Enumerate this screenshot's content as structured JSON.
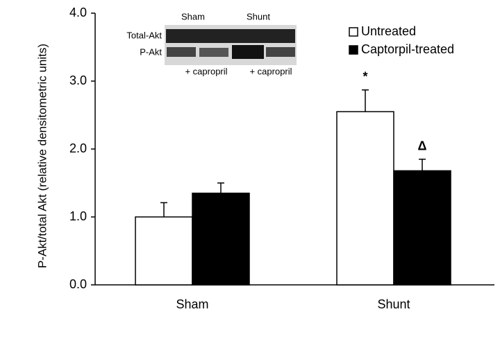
{
  "chart_data": {
    "type": "bar",
    "ylabel": "P-Akt/total Akt (relative densitometric units)",
    "categories": [
      "Sham",
      "Shunt"
    ],
    "series": [
      {
        "name": "Untreated",
        "color": "#ffffff",
        "values": [
          1.0,
          2.55
        ],
        "errors": [
          0.21,
          0.32
        ]
      },
      {
        "name": "Captorpil-treated",
        "color": "#000000",
        "values": [
          1.35,
          1.68
        ],
        "errors": [
          0.15,
          0.17
        ]
      }
    ],
    "annotations": [
      "*",
      "Δ"
    ],
    "ylim": [
      0,
      4
    ],
    "yticks": [
      {
        "value": 0,
        "label": "0.0"
      },
      {
        "value": 1,
        "label": "1.0"
      },
      {
        "value": 2,
        "label": "2.0"
      },
      {
        "value": 3,
        "label": "3.0"
      },
      {
        "value": 4,
        "label": "4.0"
      }
    ],
    "inset": {
      "columns": [
        "Sham",
        "Shunt"
      ],
      "rows": [
        "Total-Akt",
        "P-Akt"
      ],
      "treatment_labels": [
        "+ capropril",
        "+ capropril"
      ]
    }
  }
}
